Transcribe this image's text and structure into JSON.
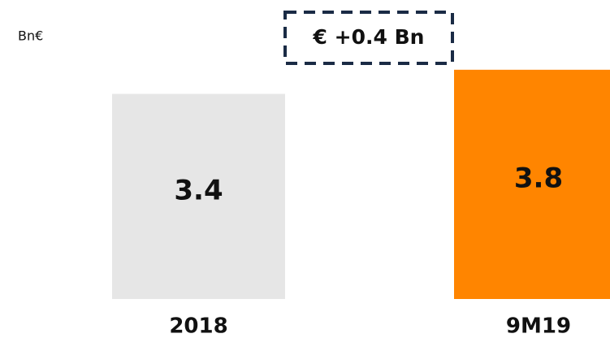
{
  "chart_data": {
    "type": "bar",
    "unit": "Bn€",
    "annotation": "€ +0.4 Bn",
    "categories": [
      "2018",
      "9M19"
    ],
    "values": [
      3.4,
      3.8
    ],
    "colors": [
      "#e6e6e6",
      "#ff8500"
    ],
    "ylim": [
      0,
      4
    ]
  }
}
